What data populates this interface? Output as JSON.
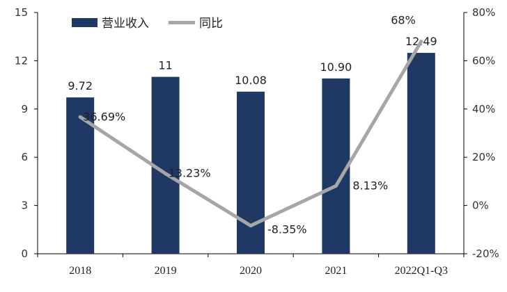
{
  "chart_data": {
    "type": "bar",
    "categories": [
      "2018",
      "2019",
      "2020",
      "2021",
      "2022Q1-Q3"
    ],
    "series": [
      {
        "name": "营业收入",
        "type": "bar",
        "axis": "left",
        "values": [
          9.72,
          11,
          10.08,
          10.9,
          12.49
        ],
        "labels": [
          "9.72",
          "11",
          "10.08",
          "10.90",
          "12.49"
        ],
        "color": "#203864"
      },
      {
        "name": "同比",
        "type": "line",
        "axis": "right",
        "values": [
          36.69,
          13.23,
          -8.35,
          8.13,
          68
        ],
        "labels": [
          "36.69%",
          "13.23%",
          "-8.35%",
          "8.13%",
          "68%"
        ],
        "color": "#a6a6a6"
      }
    ],
    "left_axis": {
      "ylim": [
        0,
        15
      ],
      "ticks": [
        "0",
        "3",
        "6",
        "9",
        "12",
        "15"
      ]
    },
    "right_axis": {
      "ylim": [
        -20,
        80
      ],
      "ticks": [
        "-20%",
        "0%",
        "20%",
        "40%",
        "60%",
        "80%"
      ]
    },
    "grid": false,
    "legend": "top-left"
  }
}
